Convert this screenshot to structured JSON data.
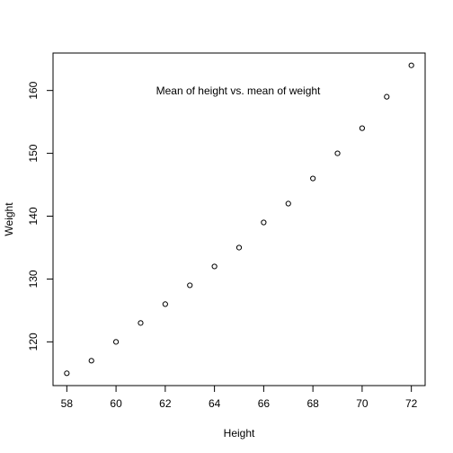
{
  "chart_data": {
    "type": "scatter",
    "annotation": "Mean of height vs. mean of weight",
    "xlabel": "Height",
    "ylabel": "Weight",
    "xlim": [
      57.44,
      72.56
    ],
    "ylim": [
      113.04,
      165.96
    ],
    "x_ticks": [
      58,
      60,
      62,
      64,
      66,
      68,
      70,
      72
    ],
    "y_ticks": [
      120,
      130,
      140,
      150,
      160
    ],
    "grid": false,
    "points": [
      {
        "x": 58,
        "y": 115
      },
      {
        "x": 59,
        "y": 117
      },
      {
        "x": 60,
        "y": 120
      },
      {
        "x": 61,
        "y": 123
      },
      {
        "x": 62,
        "y": 126
      },
      {
        "x": 63,
        "y": 129
      },
      {
        "x": 64,
        "y": 132
      },
      {
        "x": 65,
        "y": 135
      },
      {
        "x": 66,
        "y": 139
      },
      {
        "x": 67,
        "y": 142
      },
      {
        "x": 68,
        "y": 146
      },
      {
        "x": 69,
        "y": 150
      },
      {
        "x": 70,
        "y": 154
      },
      {
        "x": 71,
        "y": 159
      },
      {
        "x": 72,
        "y": 164
      }
    ]
  }
}
